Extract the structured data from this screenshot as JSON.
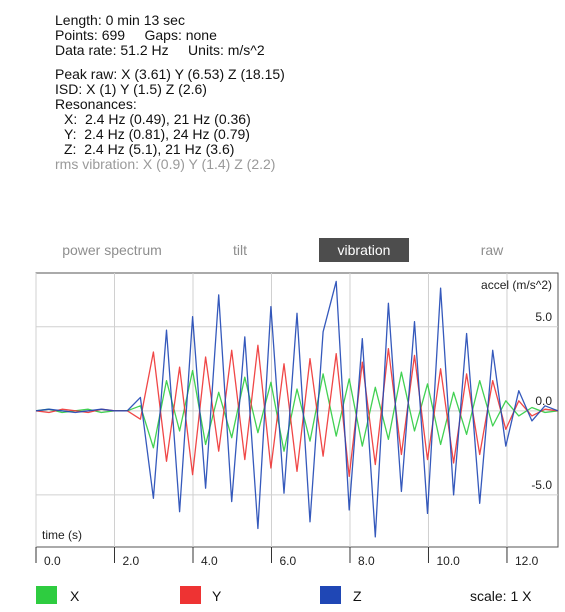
{
  "summary": {
    "length": "Length: 0 min 13 sec",
    "points_gaps": "Points: 699     Gaps: none",
    "data_rate": "Data rate: 51.2 Hz     Units: m/s^2",
    "peak_raw": "Peak raw: X (3.61) Y (6.53) Z (18.15)",
    "isd": "ISD: X (1) Y (1.5) Z (2.6)",
    "resonances_label": "Resonances:",
    "res_x": "X:  2.4 Hz (0.49), 21 Hz (0.36)",
    "res_y": "Y:  2.4 Hz (0.81), 24 Hz (0.79)",
    "res_z": "Z:  2.4 Hz (5.1), 21 Hz (3.6)",
    "rms": "rms vibration: X (0.9) Y (1.4) Z (2.2)"
  },
  "tabs": [
    {
      "label": "power spectrum",
      "active": false
    },
    {
      "label": "tilt",
      "active": false
    },
    {
      "label": "vibration",
      "active": true
    },
    {
      "label": "raw",
      "active": false
    }
  ],
  "plot": {
    "ylabel": "accel (m/s^2)",
    "xlabel": "time (s)",
    "x_ticks": [
      "0.0",
      "2.0",
      "4.0",
      "6.0",
      "8.0",
      "10.0",
      "12.0"
    ],
    "y_ticks": [
      "5.0",
      "0.0",
      "-5.0"
    ]
  },
  "legend": {
    "items": [
      {
        "label": "X",
        "color": "#2ecc40"
      },
      {
        "label": "Y",
        "color": "#ee3333"
      },
      {
        "label": "Z",
        "color": "#1f47b5"
      }
    ],
    "scale": "scale: 1 X"
  },
  "chart_data": {
    "type": "line",
    "xlabel": "time (s)",
    "ylabel": "accel (m/s^2)",
    "xlim": [
      0,
      13.3
    ],
    "ylim": [
      -8.1,
      8.2
    ],
    "x_ticks": [
      0,
      2,
      4,
      6,
      8,
      10,
      12
    ],
    "y_ticks": [
      5,
      0,
      -5
    ],
    "grid": true,
    "series": [
      {
        "name": "X",
        "color": "#2ecc40",
        "values": [
          0.0,
          0.1,
          -0.1,
          0.0,
          0.1,
          -0.1,
          0.0,
          0.0,
          0.3,
          -2.2,
          1.8,
          -1.2,
          2.4,
          -2.0,
          1.1,
          -1.6,
          2.0,
          -1.3,
          1.7,
          -2.4,
          1.3,
          -1.8,
          2.2,
          -1.5,
          1.9,
          -2.1,
          1.4,
          -1.7,
          2.3,
          -1.2,
          1.6,
          -2.0,
          1.1,
          -1.4,
          1.8,
          -0.9,
          0.6,
          -0.3,
          0.2,
          -0.1,
          0.0
        ]
      },
      {
        "name": "Y",
        "color": "#ee3333",
        "values": [
          0.0,
          -0.1,
          0.1,
          0.0,
          -0.1,
          0.1,
          0.0,
          0.0,
          -0.5,
          3.5,
          -3.0,
          2.6,
          -3.8,
          3.2,
          -2.4,
          3.6,
          -2.9,
          3.9,
          -3.4,
          2.8,
          -3.6,
          3.1,
          -2.7,
          3.4,
          -3.9,
          2.9,
          -3.2,
          3.7,
          -2.6,
          3.3,
          -2.9,
          2.5,
          -3.1,
          2.2,
          -2.6,
          1.8,
          -1.1,
          0.6,
          -0.3,
          0.1,
          0.0
        ]
      },
      {
        "name": "Z",
        "color": "#1f47b5",
        "values": [
          0.0,
          0.1,
          0.0,
          -0.1,
          0.0,
          0.1,
          0.0,
          0.0,
          0.8,
          -5.2,
          4.8,
          -6.0,
          5.6,
          -4.6,
          6.9,
          -5.4,
          4.4,
          -7.0,
          6.2,
          -4.9,
          5.8,
          -6.6,
          4.7,
          7.7,
          -5.9,
          4.3,
          -7.5,
          6.4,
          -4.8,
          5.3,
          -6.1,
          7.3,
          -5.0,
          4.6,
          -5.5,
          3.6,
          -2.1,
          1.2,
          -0.6,
          0.3,
          0.0
        ]
      }
    ]
  }
}
